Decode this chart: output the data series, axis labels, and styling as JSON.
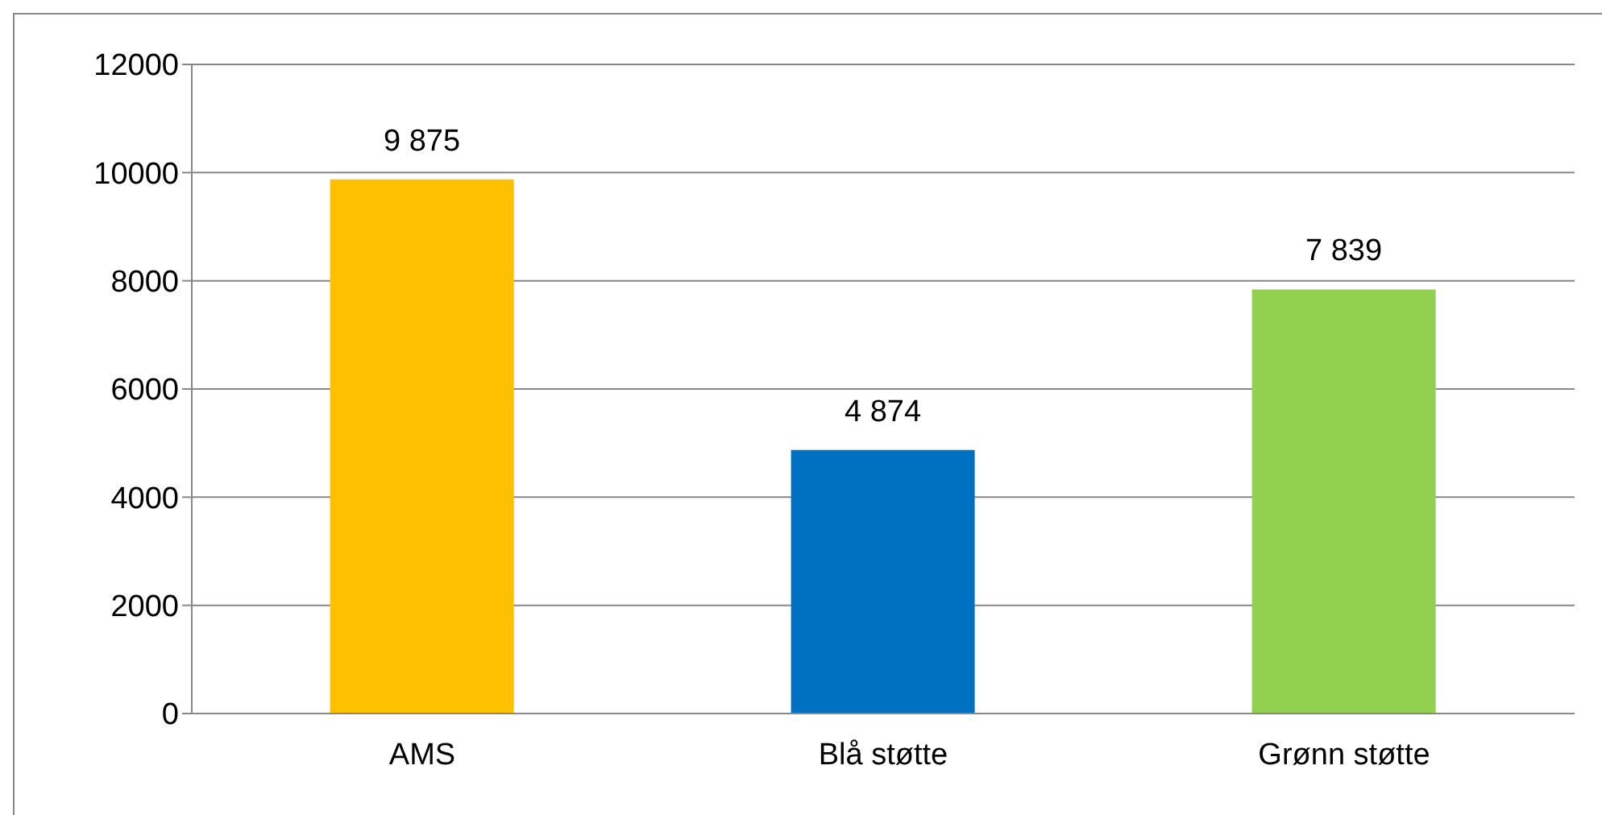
{
  "chart_data": {
    "type": "bar",
    "categories": [
      "AMS",
      "Blå støtte",
      "Grønn støtte"
    ],
    "values": [
      9875,
      4874,
      7839
    ],
    "colors": [
      "#ffc000",
      "#0070c0",
      "#92d050"
    ],
    "value_labels": [
      "9 875",
      "4 874",
      "7 839"
    ],
    "ylim": [
      0,
      12000
    ],
    "yticks": [
      0,
      2000,
      4000,
      6000,
      8000,
      10000,
      12000
    ],
    "grid": "y",
    "legend": false
  }
}
